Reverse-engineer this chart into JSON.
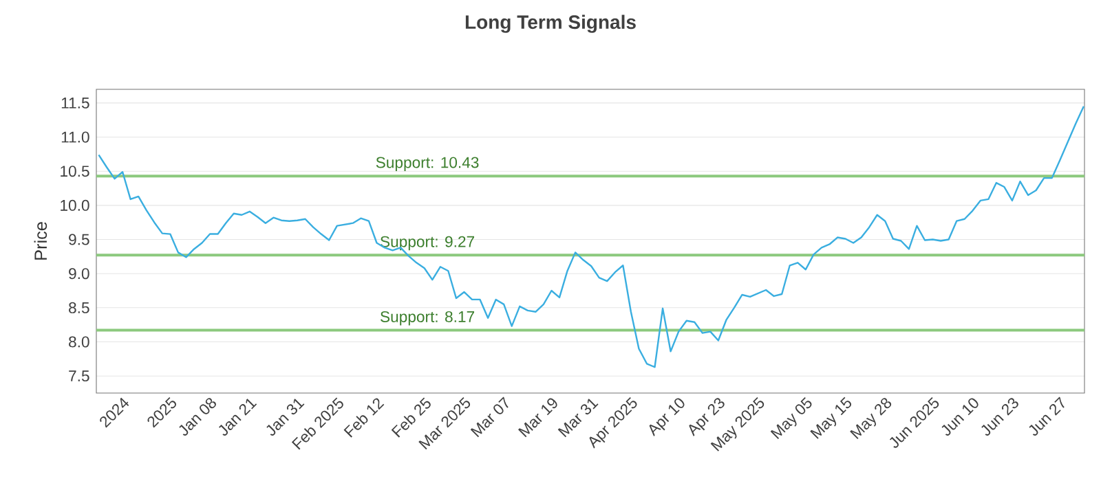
{
  "chart_data": {
    "type": "line",
    "title": "Long Term Signals",
    "ylabel": "Price",
    "categories": [
      null,
      null,
      null,
      "2024",
      null,
      null,
      null,
      null,
      null,
      "2025",
      null,
      null,
      null,
      null,
      "Jan 08",
      null,
      null,
      null,
      null,
      "Jan 21",
      null,
      null,
      null,
      null,
      null,
      "Jan 31",
      null,
      null,
      null,
      null,
      "Feb 2025",
      null,
      null,
      null,
      null,
      "Feb 12",
      null,
      null,
      null,
      null,
      null,
      "Feb 25",
      null,
      null,
      null,
      null,
      "Mar 2025",
      null,
      null,
      null,
      null,
      "Mar 07",
      null,
      null,
      null,
      null,
      null,
      "Mar 19",
      null,
      null,
      null,
      null,
      "Mar 31",
      null,
      null,
      null,
      null,
      "Apr 2025",
      null,
      null,
      null,
      null,
      null,
      "Apr 10",
      null,
      null,
      null,
      null,
      "Apr 23",
      null,
      null,
      null,
      null,
      "May 2025",
      null,
      null,
      null,
      null,
      null,
      "May 05",
      null,
      null,
      null,
      null,
      "May 15",
      null,
      null,
      null,
      null,
      "May 28",
      null,
      null,
      null,
      null,
      null,
      "Jun 2025",
      null,
      null,
      null,
      null,
      "Jun 10",
      null,
      null,
      null,
      null,
      "Jun 23",
      null,
      null,
      null,
      null,
      null,
      "Jun 27",
      null,
      null,
      null
    ],
    "series": [
      {
        "color": "#3aaee0",
        "values": [
          10.74,
          10.56,
          10.39,
          10.49,
          10.09,
          10.13,
          9.93,
          9.75,
          9.59,
          9.58,
          9.31,
          9.24,
          9.36,
          9.45,
          9.58,
          9.58,
          9.74,
          9.88,
          9.86,
          9.91,
          9.83,
          9.74,
          9.82,
          9.78,
          9.77,
          9.78,
          9.8,
          9.68,
          9.58,
          9.49,
          9.7,
          9.72,
          9.74,
          9.81,
          9.77,
          9.45,
          9.38,
          9.34,
          9.38,
          9.26,
          9.16,
          9.08,
          8.91,
          9.1,
          9.04,
          8.64,
          8.73,
          8.62,
          8.62,
          8.35,
          8.62,
          8.55,
          8.23,
          8.52,
          8.46,
          8.44,
          8.55,
          8.75,
          8.65,
          9.04,
          9.31,
          9.2,
          9.11,
          8.94,
          8.89,
          9.02,
          9.12,
          8.44,
          7.9,
          7.68,
          7.63,
          8.49,
          7.86,
          8.15,
          8.31,
          8.29,
          8.13,
          8.15,
          8.02,
          8.32,
          8.5,
          8.69,
          8.66,
          8.71,
          8.76,
          8.67,
          8.7,
          9.12,
          9.16,
          9.06,
          9.28,
          9.38,
          9.43,
          9.53,
          9.51,
          9.45,
          9.53,
          9.68,
          9.86,
          9.77,
          9.51,
          9.48,
          9.36,
          9.7,
          9.49,
          9.5,
          9.48,
          9.5,
          9.77,
          9.8,
          9.92,
          10.07,
          10.09,
          10.33,
          10.27,
          10.07,
          10.35,
          10.15,
          10.22,
          10.4,
          10.4,
          10.66,
          10.93,
          11.2,
          11.45
        ]
      }
    ],
    "ylim": [
      7.25,
      11.7
    ],
    "yticks": [
      {
        "value": 7.5,
        "label": "7.5"
      },
      {
        "value": 8,
        "label": "8.0"
      },
      {
        "value": 8.5,
        "label": "8.5"
      },
      {
        "value": 9,
        "label": "9.0"
      },
      {
        "value": 9.5,
        "label": "9.5"
      },
      {
        "value": 10,
        "label": "10.0"
      },
      {
        "value": 10.5,
        "label": "10.5"
      },
      {
        "value": 11,
        "label": "11.0"
      },
      {
        "value": 11.5,
        "label": "11.5"
      }
    ],
    "ref_lines": [
      {
        "axis": "y",
        "value": 10.43,
        "label": "Support: 10.43",
        "color": "#8cc97e"
      },
      {
        "axis": "y",
        "value": 9.27,
        "label": "Support: 9.27",
        "color": "#8cc97e"
      },
      {
        "axis": "y",
        "value": 8.17,
        "label": "Support: 8.17",
        "color": "#8cc97e"
      }
    ],
    "grid": "y",
    "marker": "none",
    "line_style": "solid"
  }
}
